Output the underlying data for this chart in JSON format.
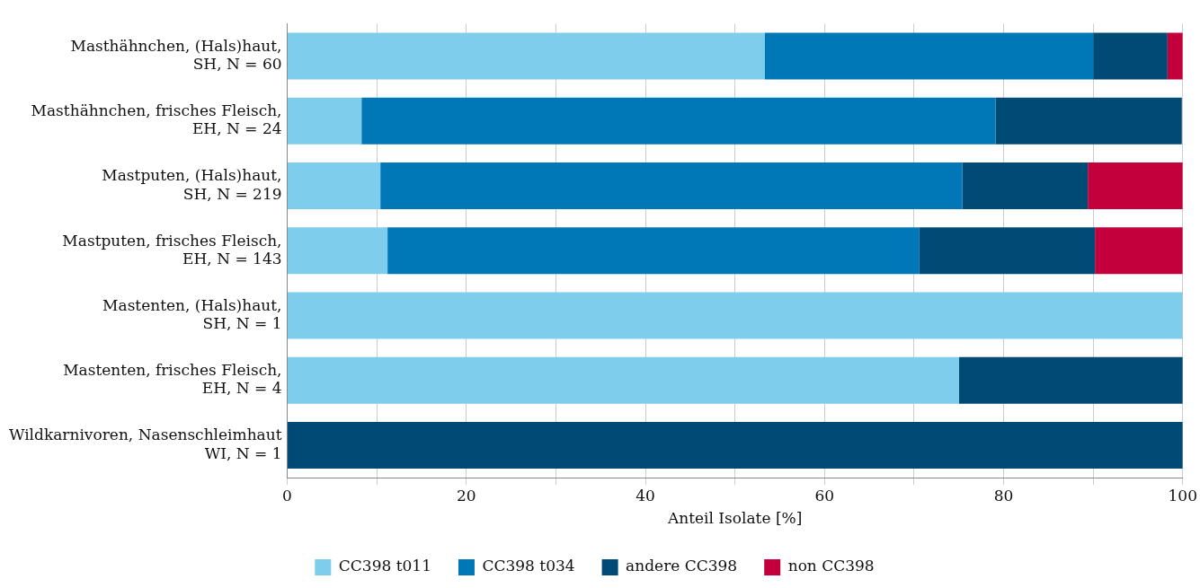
{
  "chart_data": {
    "type": "bar",
    "orientation": "horizontal",
    "stacked": true,
    "categories": [
      "Masthähnchen, (Hals)haut,\nSH, N = 60",
      "Masthähnchen, frisches Fleisch,\nEH, N = 24",
      "Mastputen, (Hals)haut,\nSH, N = 219",
      "Mastputen, frisches Fleisch,\nEH, N = 143",
      "Mastenten, (Hals)haut,\nSH, N = 1",
      "Mastenten, frisches Fleisch,\nEH, N = 4",
      "Wildkarnivoren, Nasenschleimhaut\nWI, N = 1"
    ],
    "series": [
      {
        "name": "CC398 t011",
        "color": "#7fcdec",
        "values": [
          53.3,
          8.3,
          10.4,
          11.2,
          100,
          75,
          0
        ]
      },
      {
        "name": "CC398 t034",
        "color": "#0077b6",
        "values": [
          36.7,
          70.8,
          65.0,
          59.4,
          0,
          0,
          0
        ]
      },
      {
        "name": "andere CC398",
        "color": "#004b76",
        "values": [
          8.3,
          20.8,
          14.0,
          19.6,
          0,
          25,
          100
        ]
      },
      {
        "name": "non CC398",
        "color": "#c3003c",
        "values": [
          1.7,
          0,
          10.6,
          9.8,
          0,
          0,
          0
        ]
      }
    ],
    "xlabel": "Anteil Isolate [%]",
    "xlim": [
      0,
      100
    ],
    "xticks": [
      0,
      {
        "value": 10,
        "label": null
      },
      20,
      {
        "value": 30,
        "label": null
      },
      40,
      {
        "value": 50,
        "label": null
      },
      60,
      {
        "value": 70,
        "label": null
      },
      80,
      {
        "value": 90,
        "label": null
      },
      100
    ],
    "grid": "x",
    "legend": "bottom"
  }
}
